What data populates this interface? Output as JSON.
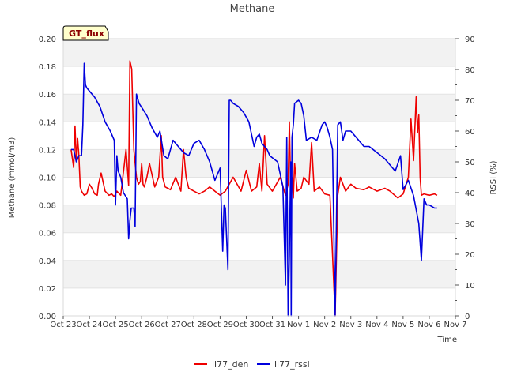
{
  "chart_data": {
    "type": "line",
    "title": "Methane",
    "badge": "GT_flux",
    "xlabel": "Time",
    "ylabel": "Methane (mmol/m3)",
    "y2label": "RSSI (%)",
    "xlim": [
      0,
      15
    ],
    "ylim": [
      0,
      0.2
    ],
    "y2lim": [
      0,
      90
    ],
    "x_ticks": [
      "Oct 23",
      "Oct 24",
      "Oct 25",
      "Oct 26",
      "Oct 27",
      "Oct 28",
      "Oct 29",
      "Oct 30",
      "Oct 31",
      "Nov 1",
      "Nov 2",
      "Nov 3",
      "Nov 4",
      "Nov 5",
      "Nov 6",
      "Nov 7"
    ],
    "y_ticks": [
      "0.00",
      "0.02",
      "0.04",
      "0.06",
      "0.08",
      "0.10",
      "0.12",
      "0.14",
      "0.16",
      "0.18",
      "0.20"
    ],
    "y2_ticks": [
      "0",
      "10",
      "20",
      "30",
      "40",
      "50",
      "60",
      "70",
      "80",
      "90"
    ],
    "legend": [
      {
        "name": "li77_den",
        "color": "#ee0000"
      },
      {
        "name": "li77_rssi",
        "color": "#0000dd"
      }
    ],
    "series": [
      {
        "name": "li77_den",
        "axis": "left",
        "color": "#ee0000",
        "x": [
          0.3,
          0.4,
          0.45,
          0.5,
          0.55,
          0.6,
          0.65,
          0.7,
          0.8,
          0.9,
          1.0,
          1.1,
          1.2,
          1.3,
          1.35,
          1.45,
          1.6,
          1.75,
          1.85,
          1.95,
          2.05,
          2.2,
          2.4,
          2.5,
          2.55,
          2.62,
          2.7,
          2.8,
          2.88,
          2.95,
          3.0,
          3.05,
          3.1,
          3.2,
          3.3,
          3.5,
          3.65,
          3.75,
          3.8,
          3.9,
          4.0,
          4.1,
          4.3,
          4.5,
          4.6,
          4.7,
          4.8,
          5.0,
          5.2,
          5.4,
          5.6,
          5.8,
          6.0,
          6.2,
          6.5,
          6.8,
          7.0,
          7.2,
          7.4,
          7.5,
          7.6,
          7.7,
          7.8,
          8.0,
          8.3,
          8.5,
          8.6,
          8.65,
          8.7,
          8.75,
          8.8,
          8.85,
          8.95,
          9.1,
          9.2,
          9.4,
          9.5,
          9.6,
          9.8,
          10.0,
          10.2,
          10.4,
          10.5,
          10.6,
          10.8,
          11.0,
          11.2,
          11.5,
          11.7,
          12.0,
          12.3,
          12.5,
          12.8,
          13.0,
          13.2,
          13.3,
          13.4,
          13.5,
          13.55,
          13.6,
          13.65,
          13.7,
          13.8,
          14.0,
          14.2,
          14.3
        ],
        "y": [
          0.12,
          0.107,
          0.137,
          0.112,
          0.128,
          0.115,
          0.093,
          0.09,
          0.087,
          0.088,
          0.095,
          0.092,
          0.088,
          0.087,
          0.095,
          0.103,
          0.09,
          0.087,
          0.088,
          0.086,
          0.09,
          0.087,
          0.12,
          0.094,
          0.184,
          0.178,
          0.12,
          0.1,
          0.095,
          0.097,
          0.11,
          0.095,
          0.093,
          0.1,
          0.11,
          0.093,
          0.1,
          0.13,
          0.1,
          0.093,
          0.092,
          0.091,
          0.1,
          0.09,
          0.12,
          0.1,
          0.092,
          0.09,
          0.088,
          0.09,
          0.093,
          0.09,
          0.087,
          0.09,
          0.1,
          0.09,
          0.105,
          0.09,
          0.093,
          0.11,
          0.09,
          0.13,
          0.095,
          0.09,
          0.1,
          0.087,
          0.095,
          0.14,
          0.09,
          0.1,
          0.085,
          0.11,
          0.09,
          0.092,
          0.1,
          0.095,
          0.125,
          0.09,
          0.093,
          0.088,
          0.087,
          0.0,
          0.087,
          0.1,
          0.09,
          0.095,
          0.092,
          0.091,
          0.093,
          0.09,
          0.092,
          0.09,
          0.085,
          0.088,
          0.1,
          0.142,
          0.112,
          0.158,
          0.132,
          0.145,
          0.1,
          0.087,
          0.088,
          0.087,
          0.088,
          0.087
        ]
      },
      {
        "name": "li77_rssi",
        "axis": "right",
        "color": "#0000dd",
        "x": [
          0.3,
          0.4,
          0.5,
          0.55,
          0.6,
          0.7,
          0.75,
          0.8,
          0.85,
          0.9,
          1.0,
          1.2,
          1.4,
          1.6,
          1.8,
          1.95,
          2.0,
          2.05,
          2.1,
          2.15,
          2.2,
          2.3,
          2.45,
          2.5,
          2.55,
          2.6,
          2.7,
          2.75,
          2.8,
          2.9,
          3.05,
          3.2,
          3.4,
          3.6,
          3.7,
          3.85,
          4.0,
          4.2,
          4.4,
          4.6,
          4.8,
          5.0,
          5.2,
          5.4,
          5.6,
          5.8,
          6.0,
          6.05,
          6.1,
          6.15,
          6.2,
          6.3,
          6.35,
          6.4,
          6.5,
          6.7,
          6.9,
          7.1,
          7.3,
          7.4,
          7.5,
          7.6,
          7.7,
          7.8,
          7.9,
          8.2,
          8.4,
          8.5,
          8.55,
          8.6,
          8.65,
          8.7,
          8.72,
          8.75,
          8.8,
          8.85,
          9.0,
          9.1,
          9.2,
          9.3,
          9.5,
          9.7,
          9.9,
          10.0,
          10.1,
          10.2,
          10.3,
          10.4,
          10.5,
          10.6,
          10.65,
          10.7,
          10.8,
          11.0,
          11.3,
          11.5,
          11.7,
          12.0,
          12.3,
          12.5,
          12.7,
          12.9,
          13.0,
          13.2,
          13.4,
          13.6,
          13.7,
          13.8,
          13.9,
          14.0,
          14.2,
          14.3
        ],
        "y": [
          54,
          54,
          50,
          51,
          52,
          52,
          62,
          82,
          75,
          74,
          73,
          71,
          68,
          63,
          60,
          57,
          36,
          52,
          47,
          46,
          45,
          40,
          38,
          25,
          31,
          35,
          35,
          29,
          72,
          69,
          67,
          65,
          61,
          58,
          60,
          52,
          51,
          57,
          55,
          53,
          52,
          56,
          57,
          54,
          50,
          44,
          48,
          34,
          21,
          36,
          35,
          15,
          70,
          70,
          69,
          68,
          66,
          63,
          55,
          58,
          59,
          56,
          55,
          54,
          52,
          50,
          42,
          10,
          58,
          0,
          20,
          50,
          0,
          58,
          62,
          69,
          70,
          69,
          65,
          57,
          58,
          57,
          62,
          63,
          61,
          58,
          54,
          0,
          62,
          63,
          60,
          57,
          60,
          60,
          57,
          55,
          55,
          53,
          51,
          49,
          47,
          52,
          41,
          44,
          39,
          30,
          18,
          38,
          36,
          36,
          35,
          35
        ]
      }
    ]
  }
}
